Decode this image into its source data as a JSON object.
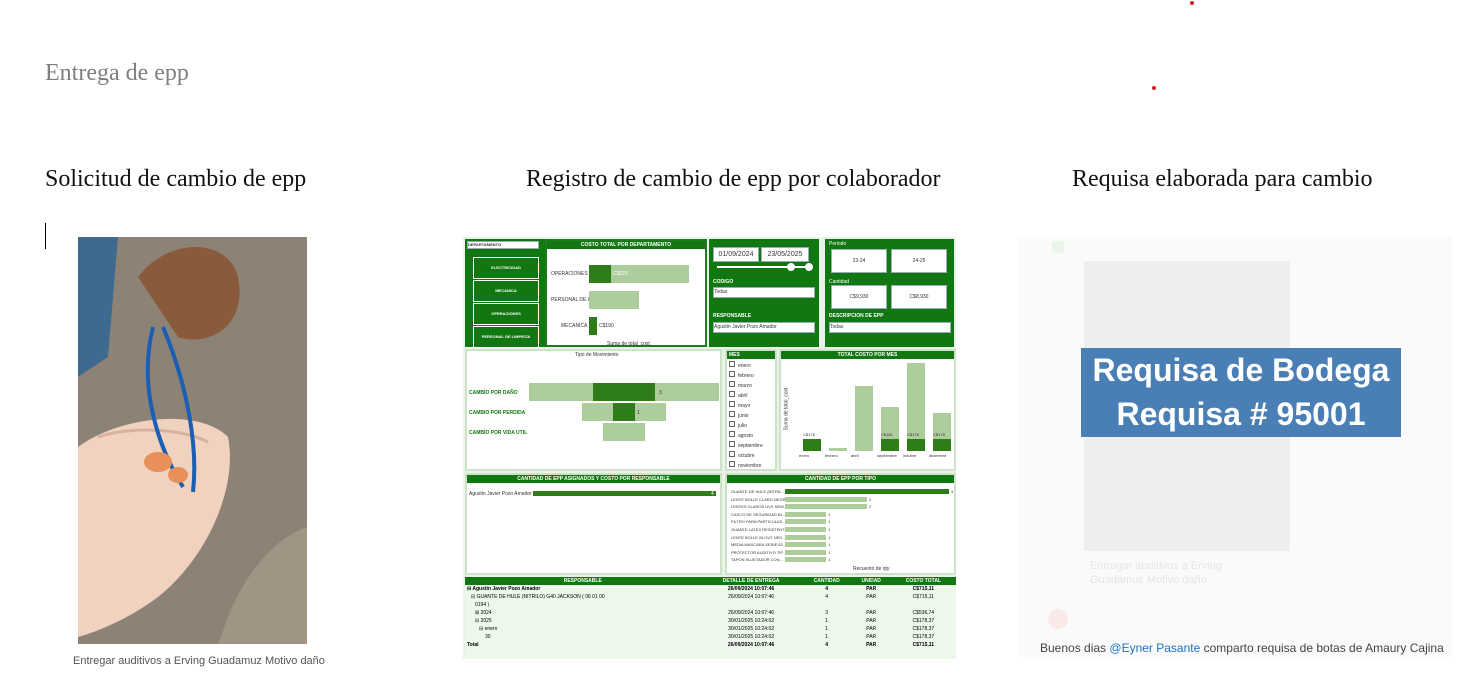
{
  "document": {
    "title": "Entrega de epp",
    "sections": [
      {
        "heading": "Solicitud de cambio de epp"
      },
      {
        "heading": "Registro de cambio de epp por colaborador"
      },
      {
        "heading": "Requisa elaborada para cambio"
      }
    ]
  },
  "photo": {
    "caption": "Entregar auditivos a Erving Guadamuz  Motivo daño"
  },
  "dashboard": {
    "dept_slicer": {
      "title": "DEPARTAMENTO",
      "items": [
        "ELECTRICIDAD",
        "MECANICA",
        "OPERACIONES",
        "PERSONAL DE LIMPIEZA"
      ]
    },
    "cost_by_dept": {
      "title": "COSTO TOTAL POR DEPARTAMENTO",
      "rows": [
        "OPERACIONES",
        "PERSONAL DE LI...",
        "MECANICA"
      ],
      "axis": "Suma de total_cost",
      "value_labels": [
        "C$523",
        "C$190"
      ]
    },
    "dates": {
      "from": "01/09/2024",
      "to": "23/05/2025"
    },
    "codigo": {
      "label": "CODIGO",
      "value": "Todas"
    },
    "responsable": {
      "label": "RESPONSABLE",
      "value": "Agustin Javier Pozo Amador"
    },
    "periodo": {
      "label": "Periodo",
      "items": [
        "23-24",
        "24-25"
      ]
    },
    "cantidad": {
      "label": "Cantidad",
      "items": [
        "C$9,930",
        "C$8,930"
      ]
    },
    "descripcion": {
      "label": "DESCRIPCION DE EPP",
      "value": "Todas"
    },
    "movimiento": {
      "title": "Tipo de Movimiento",
      "rows": [
        "CAMBIO POR DAÑO",
        "CAMBIO POR PERDIDA",
        "CAMBIO POR VIDA UTIL"
      ],
      "values": [
        "3",
        "1"
      ]
    },
    "mes": {
      "title": "MES",
      "items": [
        "enero",
        "febrero",
        "marzo",
        "abril",
        "mayo",
        "junio",
        "julio",
        "agosto",
        "septiembre",
        "octubre",
        "noviembre"
      ]
    },
    "costo_mes": {
      "title": "TOTAL COSTO POR MES",
      "ylabel": "Suma de total_cost",
      "months": [
        "enero",
        "febrero",
        "abril",
        "septiembre",
        "octubre",
        "diciembre"
      ],
      "value_labels": [
        "C$178",
        "C$181",
        "C$178",
        "C$178"
      ]
    },
    "cantidad_resp": {
      "title": "CANTIDAD DE EPP ASIGNADOS Y COSTO POR RESPONSABLE",
      "name": "Agustin Javier Pozo Amador",
      "value": "4"
    },
    "cantidad_tipo": {
      "title": "CANTIDAD DE EPP POR TIPO",
      "items": [
        "GUANTE DE HULE (NITRIL...",
        "LENTE BOLLE CLARO NEGR...",
        "LENTES CLAROS UVX NEW...",
        "CASCO DE SEGURIDAD BL...",
        "FILTRO PARA PARTICULAS ...",
        "GUANTE LATEX RESISTENT...",
        "LENTE BOLLE IN-OUT NEG...",
        "MEDIA MASCARA SERIE 62...",
        "PROTECTOR AUDITIVO TIP...",
        "TAPON SUJETADOR CON..."
      ],
      "values": [
        4,
        2,
        2,
        1,
        1,
        1,
        1,
        1,
        1,
        1
      ],
      "value_labels": [
        "4",
        "2",
        "2",
        "1",
        "1",
        "1",
        "1",
        "1",
        "1",
        "1"
      ],
      "xlabel": "Recuento de qty"
    },
    "table": {
      "headers": [
        "RESPONSABLE",
        "DETALLE DE ENTREGA",
        "CANTIDAD",
        "UNIDAD",
        "COSTO TOTAL"
      ],
      "rows": [
        [
          "⊟ Agustin Javier Pozo Amador",
          "26/09/2024 10:07:46",
          "4",
          "PAR",
          "C$715,11"
        ],
        [
          "⊟ GUANTE DE HULE (NITRILO) G40 JACKSON ( 06 01 00",
          "26/09/2024 10:07:46",
          "4",
          "PAR",
          "C$715,11"
        ],
        [
          "0194 )",
          "",
          "",
          "",
          ""
        ],
        [
          "⊞ 2024",
          "26/09/2024 10:07:46",
          "3",
          "PAR",
          "C$536,74"
        ],
        [
          "⊟ 2025",
          "30/01/2025 10:24:02",
          "1",
          "PAR",
          "C$178,37"
        ],
        [
          "⊟ enero",
          "30/01/2025 10:24:02",
          "1",
          "PAR",
          "C$178,37"
        ],
        [
          "30",
          "30/01/2025 10:24:02",
          "1",
          "PAR",
          "C$178,37"
        ],
        [
          "Total",
          "26/09/2024 10:07:46",
          "4",
          "PAR",
          "C$715,11"
        ]
      ]
    }
  },
  "requisa": {
    "banner_line1": "Requisa de Bodega",
    "banner_line2": "Requisa # 95001",
    "faint_text": "Entregar auditivos a Erving Guadamuz  Motivo daño",
    "caption_pre": "Buenos dias ",
    "caption_mention": "@Eyner Pasante",
    "caption_post": " comparto  requisa de botas de Amaury Cajina"
  }
}
